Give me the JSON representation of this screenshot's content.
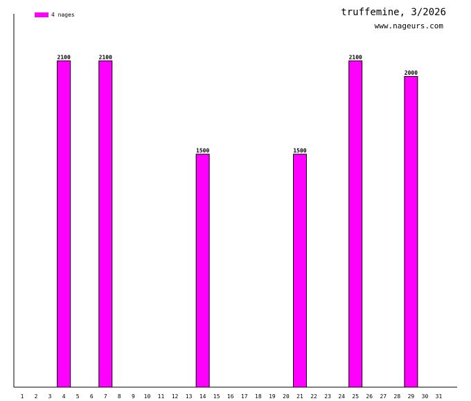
{
  "header": {
    "title": "truffemine, 3/2026",
    "site": "www.nageurs.com"
  },
  "legend": {
    "label": "4 nages",
    "color": "#ff00ff"
  },
  "chart_data": {
    "type": "bar",
    "title": "truffemine, 3/2026",
    "categories": [
      "1",
      "2",
      "3",
      "4",
      "5",
      "6",
      "7",
      "8",
      "9",
      "10",
      "11",
      "12",
      "13",
      "14",
      "15",
      "16",
      "17",
      "18",
      "19",
      "20",
      "21",
      "22",
      "23",
      "24",
      "25",
      "26",
      "27",
      "28",
      "29",
      "30",
      "31"
    ],
    "series": [
      {
        "name": "4 nages",
        "color": "#ff00ff",
        "values": [
          0,
          0,
          0,
          2100,
          0,
          0,
          2100,
          0,
          0,
          0,
          0,
          0,
          0,
          1500,
          0,
          0,
          0,
          0,
          0,
          0,
          1500,
          0,
          0,
          0,
          2100,
          0,
          0,
          0,
          2000,
          0,
          0
        ]
      }
    ],
    "ylim": [
      0,
      2400
    ],
    "data_labels": true,
    "grid": false,
    "legend_position": "top-left"
  }
}
